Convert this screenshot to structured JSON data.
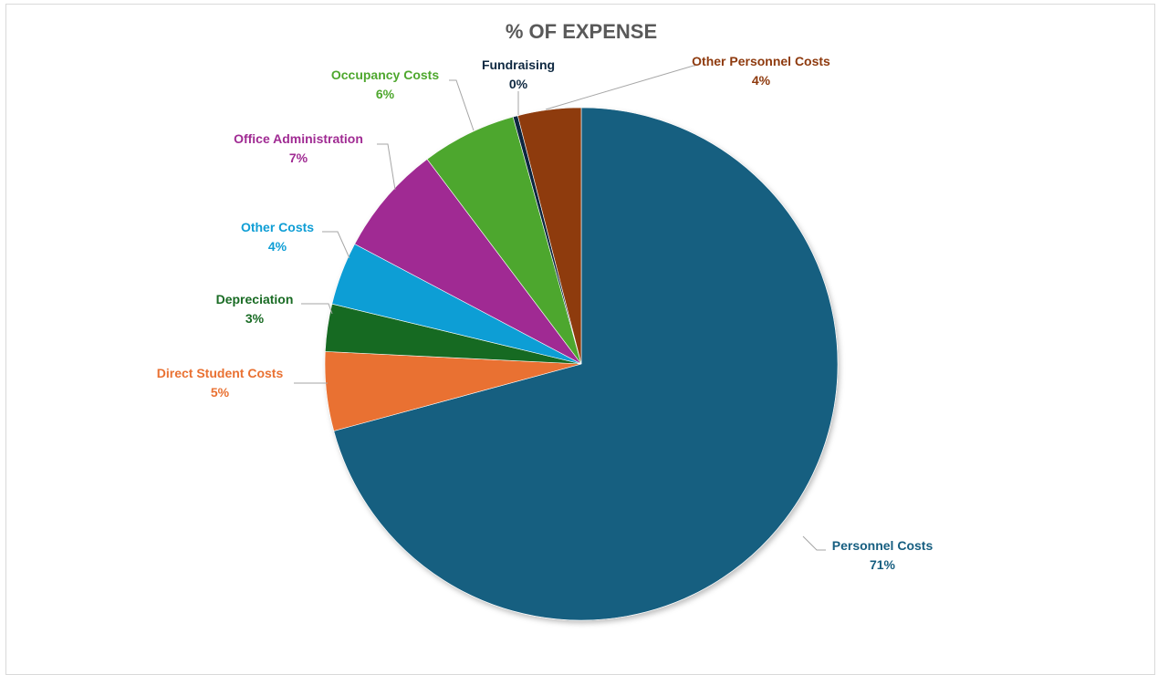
{
  "chart_data": {
    "type": "pie",
    "title": "% OF EXPENSE",
    "slices": [
      {
        "name": "Personnel Costs",
        "value": 71,
        "label": "71%",
        "color": "#165e80"
      },
      {
        "name": "Direct Student Costs",
        "value": 5,
        "label": "5%",
        "color": "#e97132"
      },
      {
        "name": "Depreciation",
        "value": 3,
        "label": "3%",
        "color": "#196b24"
      },
      {
        "name": "Other Costs",
        "value": 4,
        "label": "4%",
        "color": "#0f9ed5"
      },
      {
        "name": "Office Administration",
        "value": 7,
        "label": "7%",
        "color": "#a02b93"
      },
      {
        "name": "Occupancy Costs",
        "value": 6,
        "label": "6%",
        "color": "#4ea72e"
      },
      {
        "name": "Fundraising",
        "value": 0.3,
        "label": "0%",
        "color": "#0e2841"
      },
      {
        "name": "Other Personnel Costs",
        "value": 4,
        "label": "4%",
        "color": "#8e3a0e"
      }
    ],
    "legend": "none",
    "data_labels": "outside-with-leader-lines"
  }
}
